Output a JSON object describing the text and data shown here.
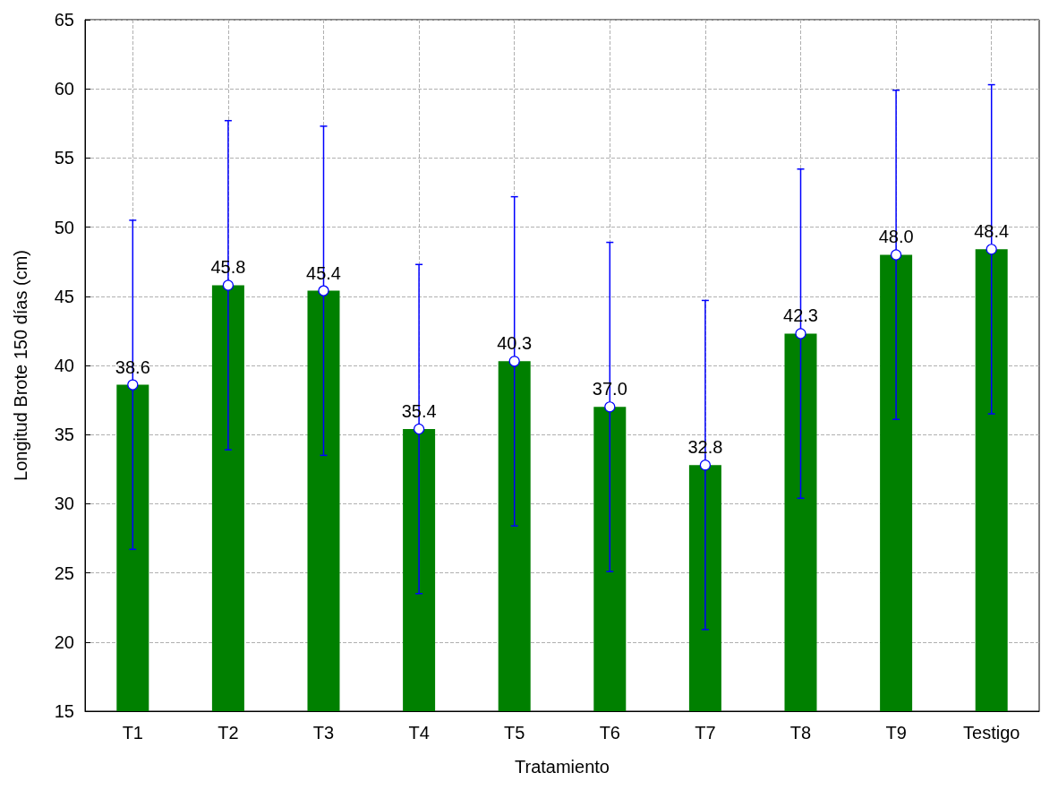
{
  "chart_data": {
    "type": "bar",
    "xlabel": "Tratamiento",
    "ylabel": "Longitud Brote 150 días (cm)",
    "categories": [
      "T1",
      "T2",
      "T3",
      "T4",
      "T5",
      "T6",
      "T7",
      "T8",
      "T9",
      "Testigo"
    ],
    "series": [
      {
        "color": "#008000",
        "values": [
          38.6,
          45.8,
          45.4,
          35.4,
          40.3,
          37.0,
          32.8,
          42.3,
          48.0,
          48.4
        ],
        "errors": [
          11.9,
          11.9,
          11.9,
          11.9,
          11.9,
          11.9,
          11.9,
          11.9,
          11.9,
          11.9
        ]
      },
      {
        "type": "scatter",
        "color": "#ffffff",
        "marker": "circle",
        "values": [
          38.6,
          45.8,
          45.4,
          35.4,
          40.3,
          37.0,
          32.8,
          42.3,
          48.0,
          48.4
        ],
        "value_labels": [
          "38.6",
          "45.8",
          "45.4",
          "35.4",
          "40.3",
          "37.0",
          "32.8",
          "42.3",
          "48.0",
          "48.4"
        ]
      }
    ],
    "ylim": [
      15,
      65
    ],
    "yticks": [
      15,
      20,
      25,
      30,
      35,
      40,
      45,
      50,
      55,
      60,
      65
    ],
    "grid": true
  }
}
